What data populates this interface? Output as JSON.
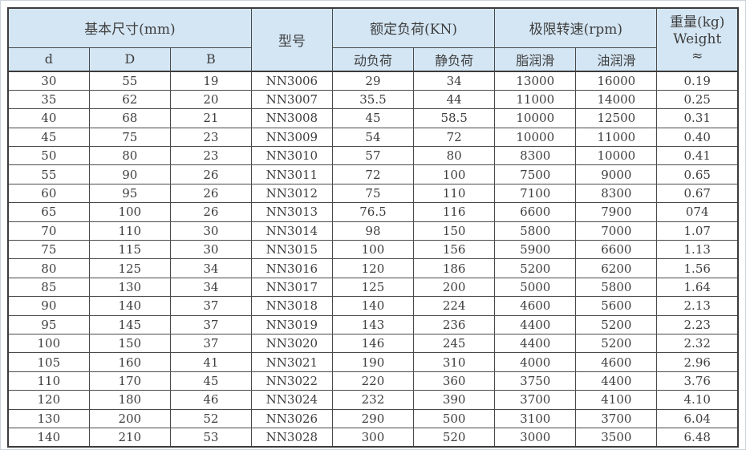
{
  "colors": {
    "header_bg": "#d4e6f4",
    "grid_border": "#4a4a4a",
    "outer_border": "#3c3c3c",
    "text": "#3e3e3e"
  },
  "table": {
    "header": {
      "basic_dims": "基本尺寸(mm)",
      "model": "型号",
      "rated_load": "额定负荷(KN)",
      "limit_speed": "极限转速(rpm)",
      "weight_cn": "重量(kg)",
      "weight_en": "Weight",
      "weight_approx": "≈",
      "sub": [
        "d",
        "D",
        "B",
        "动负荷",
        "静负荷",
        "脂润滑",
        "油润滑"
      ]
    },
    "rows": [
      [
        "30",
        "55",
        "19",
        "NN3006",
        "29",
        "34",
        "13000",
        "16000",
        "0.19"
      ],
      [
        "35",
        "62",
        "20",
        "NN3007",
        "35.5",
        "44",
        "11000",
        "14000",
        "0.25"
      ],
      [
        "40",
        "68",
        "21",
        "NN3008",
        "45",
        "58.5",
        "10000",
        "12500",
        "0.31"
      ],
      [
        "45",
        "75",
        "23",
        "NN3009",
        "54",
        "72",
        "10000",
        "11000",
        "0.40"
      ],
      [
        "50",
        "80",
        "23",
        "NN3010",
        "57",
        "80",
        "8300",
        "10000",
        "0.41"
      ],
      [
        "55",
        "90",
        "26",
        "NN3011",
        "72",
        "100",
        "7500",
        "9000",
        "0.65"
      ],
      [
        "60",
        "95",
        "26",
        "NN3012",
        "75",
        "110",
        "7100",
        "8300",
        "0.67"
      ],
      [
        "65",
        "100",
        "26",
        "NN3013",
        "76.5",
        "116",
        "6600",
        "7900",
        "074"
      ],
      [
        "70",
        "110",
        "30",
        "NN3014",
        "98",
        "150",
        "5800",
        "7000",
        "1.07"
      ],
      [
        "75",
        "115",
        "30",
        "NN3015",
        "100",
        "156",
        "5900",
        "6600",
        "1.13"
      ],
      [
        "80",
        "125",
        "34",
        "NN3016",
        "120",
        "186",
        "5200",
        "6200",
        "1.56"
      ],
      [
        "85",
        "130",
        "34",
        "NN3017",
        "125",
        "200",
        "5000",
        "5800",
        "1.64"
      ],
      [
        "90",
        "140",
        "37",
        "NN3018",
        "140",
        "224",
        "4600",
        "5600",
        "2.13"
      ],
      [
        "95",
        "145",
        "37",
        "NN3019",
        "143",
        "236",
        "4400",
        "5200",
        "2.23"
      ],
      [
        "100",
        "150",
        "37",
        "NN3020",
        "146",
        "245",
        "4400",
        "5200",
        "2.32"
      ],
      [
        "105",
        "160",
        "41",
        "NN3021",
        "190",
        "310",
        "4000",
        "4600",
        "2.96"
      ],
      [
        "110",
        "170",
        "45",
        "NN3022",
        "220",
        "360",
        "3750",
        "4400",
        "3.76"
      ],
      [
        "120",
        "180",
        "46",
        "NN3024",
        "232",
        "390",
        "3700",
        "4100",
        "4.10"
      ],
      [
        "130",
        "200",
        "52",
        "NN3026",
        "290",
        "500",
        "3100",
        "3700",
        "6.04"
      ],
      [
        "140",
        "210",
        "53",
        "NN3028",
        "300",
        "520",
        "3000",
        "3500",
        "6.48"
      ]
    ]
  }
}
